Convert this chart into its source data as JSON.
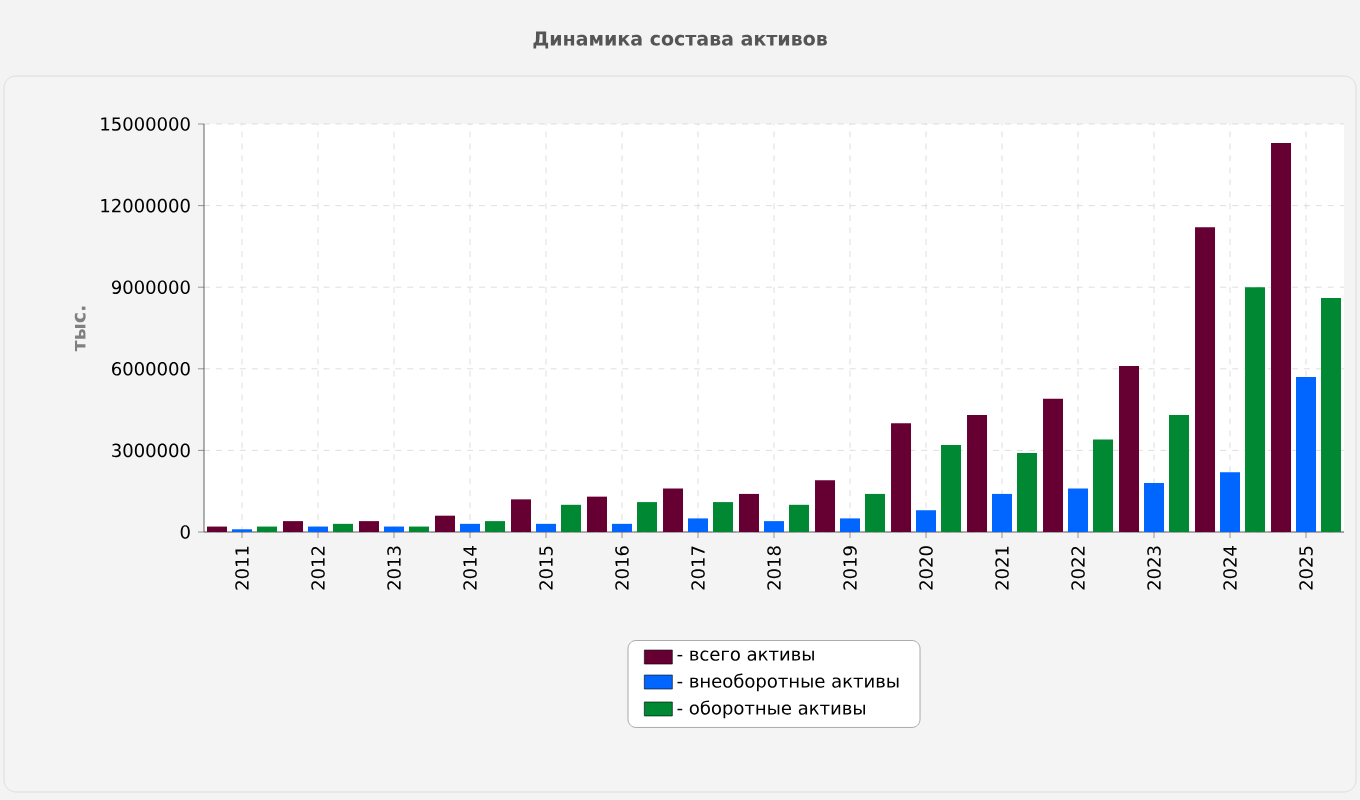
{
  "chart_data": {
    "type": "bar",
    "title": "Динамика состава активов",
    "ylabel": "тыс.",
    "categories": [
      "2011",
      "2012",
      "2013",
      "2014",
      "2015",
      "2016",
      "2017",
      "2018",
      "2019",
      "2020",
      "2021",
      "2022",
      "2023",
      "2024",
      "2025"
    ],
    "series": [
      {
        "name": "- всего активы",
        "color": "#660033",
        "values": [
          200000,
          400000,
          400000,
          600000,
          1200000,
          1300000,
          1600000,
          1400000,
          1900000,
          4000000,
          4300000,
          4900000,
          6100000,
          11200000,
          14300000
        ]
      },
      {
        "name": "- внеоборотные активы",
        "color": "#0066ff",
        "values": [
          100000,
          200000,
          200000,
          300000,
          300000,
          300000,
          500000,
          400000,
          500000,
          800000,
          1400000,
          1600000,
          1800000,
          2200000,
          5700000
        ]
      },
      {
        "name": "- оборотные активы",
        "color": "#008833",
        "values": [
          200000,
          300000,
          200000,
          400000,
          1000000,
          1100000,
          1100000,
          1000000,
          1400000,
          3200000,
          2900000,
          3400000,
          4300000,
          9000000,
          8600000
        ]
      }
    ],
    "ylim": [
      0,
      15000000
    ],
    "yticks": [
      0,
      3000000,
      6000000,
      9000000,
      12000000,
      15000000
    ],
    "grid": true,
    "legend": "bottom"
  }
}
